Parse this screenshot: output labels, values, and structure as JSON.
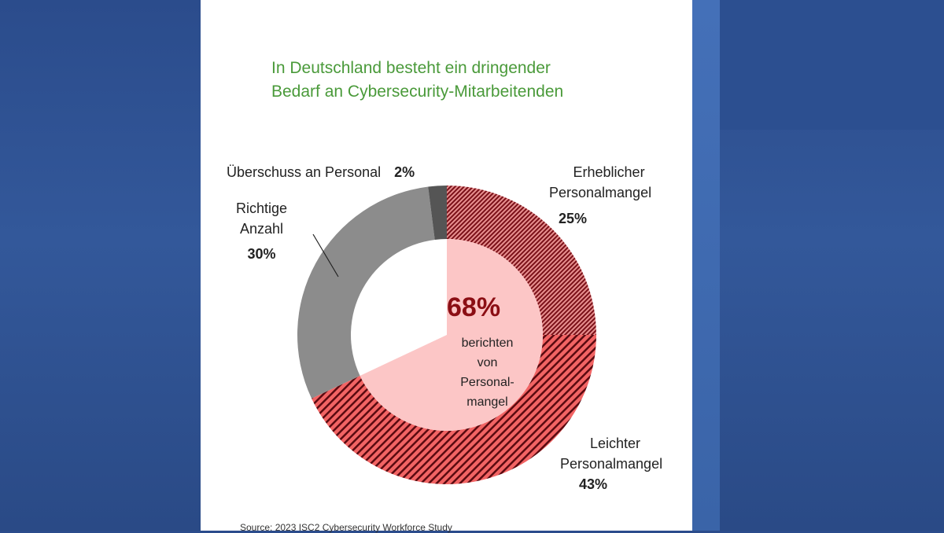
{
  "chart_data": {
    "type": "pie",
    "title": "In Deutschland besteht ein dringender Bedarf an Cybersecurity-Mitarbeitenden",
    "title_lines": [
      "In Deutschland besteht ein dringender",
      "Bedarf an Cybersecurity-Mitarbeitenden"
    ],
    "donut": true,
    "slices": [
      {
        "label_lines": [
          "Erheblicher",
          "Personalmangel"
        ],
        "value": 25,
        "value_label": "25%",
        "color": "#b0303a",
        "pattern": "fine-hatch"
      },
      {
        "label_lines": [
          "Leichter",
          "Personalmangel"
        ],
        "value": 43,
        "value_label": "43%",
        "color": "#f06060",
        "pattern": "stripes"
      },
      {
        "label_lines": [
          "Richtige",
          "Anzahl"
        ],
        "value": 30,
        "value_label": "30%",
        "color": "#8c8c8c"
      },
      {
        "label_lines": [
          "Überschuss an Personal"
        ],
        "value": 2,
        "value_label": "2%",
        "color": "#555555"
      }
    ],
    "center": {
      "value_label": "68%",
      "text_lines": [
        "berichten",
        "von",
        "Personal-",
        "mangel"
      ],
      "fill": "#fcc6c6",
      "value": 68
    },
    "source": "Source: 2023 ISC2 Cybersecurity Workforce Study"
  }
}
